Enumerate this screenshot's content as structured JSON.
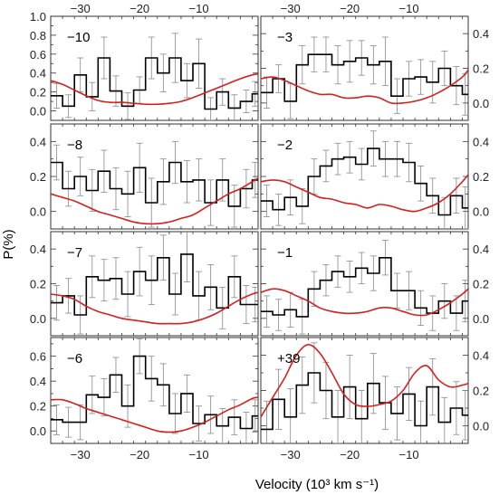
{
  "figure": {
    "xlabel": "Velocity (10³ km s⁻¹)",
    "ylabel": "P(%)"
  },
  "colors": {
    "data": "#000000",
    "model": "#d42020",
    "errorbar": "#888888",
    "frame": "#333333"
  },
  "chart_data": [
    {
      "type": "line",
      "panel": "left-1",
      "label": "−10",
      "xlim": [
        -35,
        0
      ],
      "ylim": [
        -0.1,
        1.0
      ],
      "xticks": [
        -30,
        -20,
        -10
      ],
      "yticks": [
        0.0,
        0.2,
        0.4,
        0.6,
        0.8,
        1.0
      ],
      "yticklabels": [
        "0.0",
        "0.2",
        "0.4",
        "0.6",
        "0.8",
        "1.0"
      ],
      "xtick_labels_top": true,
      "xtick_labels_bottom": false,
      "ytick_side": "left",
      "series": [
        {
          "kind": "histogram",
          "bin_edges": [
            -35,
            -33,
            -31,
            -29,
            -27,
            -25,
            -23,
            -21,
            -19,
            -17,
            -15,
            -13,
            -11,
            -9,
            -7,
            -5,
            -3,
            -1,
            0
          ],
          "values": [
            0.16,
            0.05,
            0.38,
            0.15,
            0.56,
            0.21,
            0.05,
            0.22,
            0.56,
            0.4,
            0.56,
            0.32,
            0.5,
            0.02,
            0.2,
            0.03,
            0.1,
            0.18
          ],
          "errors": [
            0.13,
            0.12,
            0.18,
            0.15,
            0.22,
            0.16,
            0.14,
            0.14,
            0.22,
            0.2,
            0.26,
            0.18,
            0.26,
            0.12,
            0.14,
            0.14,
            0.12,
            0.13
          ]
        },
        {
          "kind": "line",
          "x": [
            -35,
            -33,
            -31,
            -29,
            -27,
            -25,
            -23,
            -21,
            -19,
            -17,
            -15,
            -13,
            -11,
            -9,
            -7,
            -5,
            -3,
            -1,
            0
          ],
          "y": [
            0.32,
            0.28,
            0.22,
            0.16,
            0.11,
            0.09,
            0.09,
            0.08,
            0.07,
            0.07,
            0.08,
            0.1,
            0.14,
            0.19,
            0.24,
            0.29,
            0.34,
            0.38,
            0.39
          ]
        }
      ]
    },
    {
      "type": "line",
      "panel": "right-1",
      "label": "−3",
      "xlim": [
        -35,
        0
      ],
      "ylim": [
        -0.1,
        0.5
      ],
      "xticks": [
        -30,
        -20,
        -10
      ],
      "yticks": [
        0.0,
        0.2,
        0.4
      ],
      "yticklabels": [
        "0.0",
        "0.2",
        "0.4"
      ],
      "xtick_labels_top": true,
      "xtick_labels_bottom": false,
      "ytick_side": "right",
      "series": [
        {
          "kind": "histogram",
          "bin_edges": [
            -35,
            -33,
            -31,
            -29,
            -27,
            -25,
            -23,
            -21,
            -19,
            -17,
            -15,
            -13,
            -11,
            -9,
            -7,
            -5,
            -3,
            -1,
            0
          ],
          "values": [
            0.06,
            0.14,
            0.01,
            0.22,
            0.28,
            0.28,
            0.22,
            0.24,
            0.26,
            0.22,
            0.24,
            0.04,
            0.14,
            0.15,
            0.12,
            0.2,
            0.1,
            0.05
          ],
          "errors": [
            0.09,
            0.08,
            0.1,
            0.11,
            0.1,
            0.1,
            0.11,
            0.12,
            0.1,
            0.11,
            0.14,
            0.1,
            0.1,
            0.1,
            0.12,
            0.1,
            0.11,
            0.12
          ]
        },
        {
          "kind": "line",
          "x": [
            -35,
            -33,
            -31,
            -29,
            -27,
            -25,
            -23,
            -21,
            -19,
            -17,
            -15,
            -13,
            -11,
            -9,
            -7,
            -5,
            -3,
            -1,
            0
          ],
          "y": [
            0.14,
            0.15,
            0.13,
            0.1,
            0.07,
            0.05,
            0.05,
            0.03,
            0.03,
            0.04,
            0.03,
            0.0,
            0.0,
            0.01,
            0.03,
            0.06,
            0.1,
            0.15,
            0.19
          ]
        }
      ]
    },
    {
      "type": "line",
      "panel": "left-2",
      "label": "−8",
      "xlim": [
        -35,
        0
      ],
      "ylim": [
        -0.1,
        0.5
      ],
      "xticks": [
        -30,
        -20,
        -10
      ],
      "yticks": [
        0.0,
        0.2,
        0.4
      ],
      "yticklabels": [
        "0.0",
        "0.2",
        "0.4"
      ],
      "xtick_labels_top": false,
      "xtick_labels_bottom": false,
      "ytick_side": "left",
      "series": [
        {
          "kind": "histogram",
          "bin_edges": [
            -35,
            -33,
            -31,
            -29,
            -27,
            -25,
            -23,
            -21,
            -19,
            -17,
            -15,
            -13,
            -11,
            -9,
            -7,
            -5,
            -3,
            -1,
            0
          ],
          "values": [
            0.28,
            0.13,
            0.2,
            0.12,
            0.23,
            0.13,
            0.1,
            0.25,
            0.05,
            0.17,
            0.28,
            0.17,
            0.18,
            0.05,
            0.18,
            0.03,
            0.13,
            0.18
          ],
          "errors": [
            0.1,
            0.1,
            0.11,
            0.12,
            0.12,
            0.12,
            0.13,
            0.14,
            0.14,
            0.13,
            0.12,
            0.12,
            0.12,
            0.13,
            0.12,
            0.12,
            0.11,
            0.1
          ]
        },
        {
          "kind": "line",
          "x": [
            -35,
            -33,
            -31,
            -29,
            -27,
            -25,
            -23,
            -21,
            -19,
            -17,
            -15,
            -13,
            -11,
            -9,
            -7,
            -5,
            -3,
            -1,
            0
          ],
          "y": [
            0.1,
            0.08,
            0.06,
            0.03,
            0.0,
            -0.02,
            -0.04,
            -0.06,
            -0.07,
            -0.07,
            -0.06,
            -0.04,
            -0.02,
            0.02,
            0.06,
            0.1,
            0.13,
            0.17,
            0.19
          ]
        }
      ]
    },
    {
      "type": "line",
      "panel": "right-2",
      "label": "−2",
      "xlim": [
        -35,
        0
      ],
      "ylim": [
        -0.1,
        0.5
      ],
      "xticks": [
        -30,
        -20,
        -10
      ],
      "yticks": [
        0.0,
        0.2,
        0.4
      ],
      "yticklabels": [
        "0.0",
        "0.2",
        "0.4"
      ],
      "xtick_labels_top": false,
      "xtick_labels_bottom": false,
      "ytick_side": "right",
      "series": [
        {
          "kind": "histogram",
          "bin_edges": [
            -35,
            -33,
            -31,
            -29,
            -27,
            -25,
            -23,
            -21,
            -19,
            -17,
            -15,
            -13,
            -11,
            -9,
            -7,
            -5,
            -3,
            -1,
            0
          ],
          "values": [
            0.06,
            0.01,
            0.08,
            0.03,
            0.2,
            0.26,
            0.3,
            0.31,
            0.27,
            0.36,
            0.3,
            0.3,
            0.28,
            0.16,
            0.09,
            -0.02,
            0.09,
            0.02
          ],
          "errors": [
            0.09,
            0.09,
            0.1,
            0.1,
            0.1,
            0.09,
            0.09,
            0.09,
            0.09,
            0.1,
            0.1,
            0.1,
            0.11,
            0.1,
            0.1,
            0.1,
            0.1,
            0.12
          ]
        },
        {
          "kind": "line",
          "x": [
            -35,
            -33,
            -31,
            -29,
            -27,
            -25,
            -23,
            -21,
            -19,
            -17,
            -15,
            -13,
            -11,
            -9,
            -7,
            -5,
            -3,
            -1,
            0
          ],
          "y": [
            0.17,
            0.18,
            0.17,
            0.14,
            0.11,
            0.08,
            0.07,
            0.05,
            0.04,
            0.02,
            0.04,
            0.03,
            0.01,
            0.0,
            0.02,
            0.05,
            0.1,
            0.17,
            0.21
          ]
        }
      ]
    },
    {
      "type": "line",
      "panel": "left-3",
      "label": "−7",
      "xlim": [
        -35,
        0
      ],
      "ylim": [
        -0.1,
        0.5
      ],
      "xticks": [
        -30,
        -20,
        -10
      ],
      "yticks": [
        0.0,
        0.2,
        0.4
      ],
      "yticklabels": [
        "0.0",
        "0.2",
        "0.4"
      ],
      "xtick_labels_top": false,
      "xtick_labels_bottom": false,
      "ytick_side": "left",
      "series": [
        {
          "kind": "histogram",
          "bin_edges": [
            -35,
            -33,
            -31,
            -29,
            -27,
            -25,
            -23,
            -21,
            -19,
            -17,
            -15,
            -13,
            -11,
            -9,
            -7,
            -5,
            -3,
            -1,
            0
          ],
          "values": [
            0.09,
            0.13,
            0.02,
            0.24,
            0.22,
            0.23,
            0.14,
            0.27,
            0.22,
            0.35,
            0.14,
            0.37,
            0.13,
            0.18,
            0.06,
            0.24,
            0.08,
            0.08
          ],
          "errors": [
            0.1,
            0.1,
            0.11,
            0.12,
            0.12,
            0.12,
            0.13,
            0.14,
            0.14,
            0.13,
            0.12,
            0.16,
            0.14,
            0.13,
            0.12,
            0.12,
            0.11,
            0.1
          ]
        },
        {
          "kind": "line",
          "x": [
            -35,
            -33,
            -31,
            -29,
            -27,
            -25,
            -23,
            -21,
            -19,
            -17,
            -15,
            -13,
            -11,
            -9,
            -7,
            -5,
            -3,
            -1,
            0
          ],
          "y": [
            0.14,
            0.13,
            0.11,
            0.07,
            0.04,
            0.02,
            0.0,
            -0.01,
            -0.02,
            -0.03,
            -0.03,
            -0.03,
            -0.02,
            0.0,
            0.03,
            0.07,
            0.11,
            0.14,
            0.15
          ]
        }
      ]
    },
    {
      "type": "line",
      "panel": "right-3",
      "label": "−1",
      "xlim": [
        -35,
        0
      ],
      "ylim": [
        -0.1,
        0.5
      ],
      "xticks": [
        -30,
        -20,
        -10
      ],
      "yticks": [
        0.0,
        0.2,
        0.4
      ],
      "yticklabels": [
        "0.0",
        "0.2",
        "0.4"
      ],
      "xtick_labels_top": false,
      "xtick_labels_bottom": false,
      "ytick_side": "right",
      "series": [
        {
          "kind": "histogram",
          "bin_edges": [
            -35,
            -33,
            -31,
            -29,
            -27,
            -25,
            -23,
            -21,
            -19,
            -17,
            -15,
            -13,
            -11,
            -9,
            -7,
            -5,
            -3,
            -1,
            0
          ],
          "values": [
            0.04,
            0.02,
            0.05,
            0.01,
            0.17,
            0.22,
            0.27,
            0.24,
            0.29,
            0.26,
            0.35,
            0.16,
            0.16,
            0.06,
            0.03,
            0.1,
            0.03,
            0.1
          ],
          "errors": [
            0.09,
            0.09,
            0.1,
            0.1,
            0.1,
            0.09,
            0.09,
            0.09,
            0.09,
            0.1,
            0.1,
            0.1,
            0.11,
            0.1,
            0.1,
            0.1,
            0.1,
            0.12
          ]
        },
        {
          "kind": "line",
          "x": [
            -35,
            -33,
            -31,
            -29,
            -27,
            -25,
            -23,
            -21,
            -19,
            -17,
            -15,
            -13,
            -11,
            -9,
            -7,
            -5,
            -3,
            -1,
            0
          ],
          "y": [
            0.15,
            0.17,
            0.16,
            0.13,
            0.1,
            0.06,
            0.04,
            0.03,
            0.03,
            0.04,
            0.06,
            0.06,
            0.04,
            0.02,
            0.02,
            0.05,
            0.09,
            0.14,
            0.17
          ]
        }
      ]
    },
    {
      "type": "line",
      "panel": "left-4",
      "label": "−6",
      "xlim": [
        -35,
        0
      ],
      "ylim": [
        -0.1,
        0.75
      ],
      "xticks": [
        -30,
        -20,
        -10
      ],
      "yticks": [
        0.0,
        0.2,
        0.4,
        0.6
      ],
      "yticklabels": [
        "0.0",
        "0.2",
        "0.4",
        "0.6"
      ],
      "xtick_labels_top": false,
      "xtick_labels_bottom": true,
      "ytick_side": "left",
      "series": [
        {
          "kind": "histogram",
          "bin_edges": [
            -35,
            -33,
            -31,
            -29,
            -27,
            -25,
            -23,
            -21,
            -19,
            -17,
            -15,
            -13,
            -11,
            -9,
            -7,
            -5,
            -3,
            -1,
            0
          ],
          "values": [
            0.09,
            0.07,
            0.07,
            0.29,
            0.27,
            0.45,
            0.2,
            0.6,
            0.42,
            0.37,
            0.14,
            0.3,
            0.06,
            0.13,
            0.04,
            0.11,
            0.02,
            0.12
          ],
          "errors": [
            0.12,
            0.12,
            0.14,
            0.15,
            0.15,
            0.14,
            0.17,
            0.14,
            0.18,
            0.17,
            0.16,
            0.15,
            0.14,
            0.15,
            0.14,
            0.14,
            0.13,
            0.13
          ]
        },
        {
          "kind": "line",
          "x": [
            -35,
            -33,
            -31,
            -29,
            -27,
            -25,
            -23,
            -21,
            -19,
            -17,
            -15,
            -13,
            -11,
            -9,
            -7,
            -5,
            -3,
            -1,
            0
          ],
          "y": [
            0.25,
            0.25,
            0.22,
            0.18,
            0.15,
            0.12,
            0.09,
            0.06,
            0.03,
            0.0,
            -0.01,
            0.0,
            0.03,
            0.07,
            0.12,
            0.17,
            0.21,
            0.26,
            0.27
          ]
        }
      ]
    },
    {
      "type": "line",
      "panel": "right-4",
      "label": "+39",
      "xlim": [
        -35,
        0
      ],
      "ylim": [
        -0.1,
        0.5
      ],
      "xticks": [
        -30,
        -20,
        -10
      ],
      "yticks": [
        0.0,
        0.2,
        0.4
      ],
      "yticklabels": [
        "0.0",
        "0.2",
        "0.4"
      ],
      "xtick_labels_top": false,
      "xtick_labels_bottom": true,
      "ytick_side": "right",
      "series": [
        {
          "kind": "histogram",
          "bin_edges": [
            -35,
            -33,
            -31,
            -29,
            -27,
            -25,
            -23,
            -21,
            -19,
            -17,
            -15,
            -13,
            -11,
            -9,
            -7,
            -5,
            -3,
            -1,
            0
          ],
          "values": [
            -0.02,
            0.15,
            0.05,
            0.23,
            0.3,
            0.2,
            0.05,
            0.22,
            0.04,
            0.24,
            0.13,
            0.07,
            0.18,
            0.0,
            0.22,
            0.02,
            0.1,
            0.06
          ],
          "errors": [
            0.16,
            0.17,
            0.16,
            0.16,
            0.17,
            0.16,
            0.15,
            0.18,
            0.16,
            0.17,
            0.15,
            0.15,
            0.15,
            0.14,
            0.16,
            0.14,
            0.15,
            0.14
          ]
        },
        {
          "kind": "line",
          "x": [
            -35,
            -33,
            -31,
            -29,
            -27,
            -25,
            -23,
            -21,
            -19,
            -17,
            -15,
            -13,
            -11,
            -9,
            -7,
            -5,
            -3,
            -1,
            0
          ],
          "y": [
            0.05,
            0.16,
            0.27,
            0.4,
            0.46,
            0.41,
            0.3,
            0.18,
            0.12,
            0.11,
            0.12,
            0.14,
            0.2,
            0.3,
            0.34,
            0.26,
            0.22,
            0.23,
            0.24
          ]
        }
      ]
    }
  ]
}
